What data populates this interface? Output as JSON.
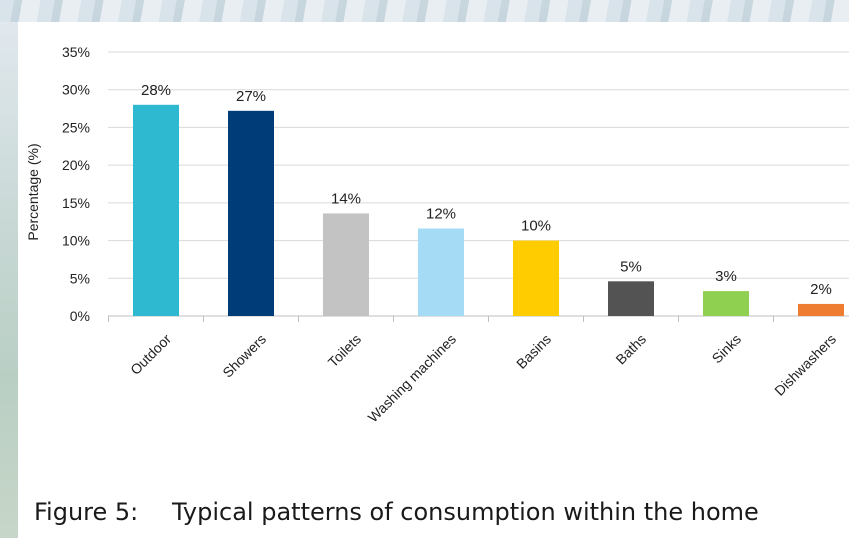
{
  "chart_data": {
    "type": "bar",
    "ylabel": "Percentage (%)",
    "ylim": [
      0,
      35
    ],
    "yticks": [
      "0%",
      "5%",
      "10%",
      "15%",
      "20%",
      "25%",
      "30%",
      "35%"
    ],
    "grid": true,
    "categories": [
      "Outdoor",
      "Showers",
      "Toilets",
      "Washing machines",
      "Basins",
      "Baths",
      "Sinks",
      "Dishwashers"
    ],
    "values": [
      28,
      27,
      14,
      12,
      10,
      5,
      3,
      2
    ],
    "plotted_values": [
      28,
      27.2,
      13.6,
      11.6,
      10,
      4.6,
      3.3,
      1.6
    ],
    "data_labels": [
      "28%",
      "27%",
      "14%",
      "12%",
      "10%",
      "5%",
      "3%",
      "2%"
    ],
    "colors": [
      "#2fb9d0",
      "#003d78",
      "#c3c3c3",
      "#a6dbf6",
      "#ffcc00",
      "#535353",
      "#8fd050",
      "#ee7d32"
    ]
  },
  "caption": {
    "number": "Figure 5:",
    "text": "Typical patterns of consumption within the home"
  }
}
